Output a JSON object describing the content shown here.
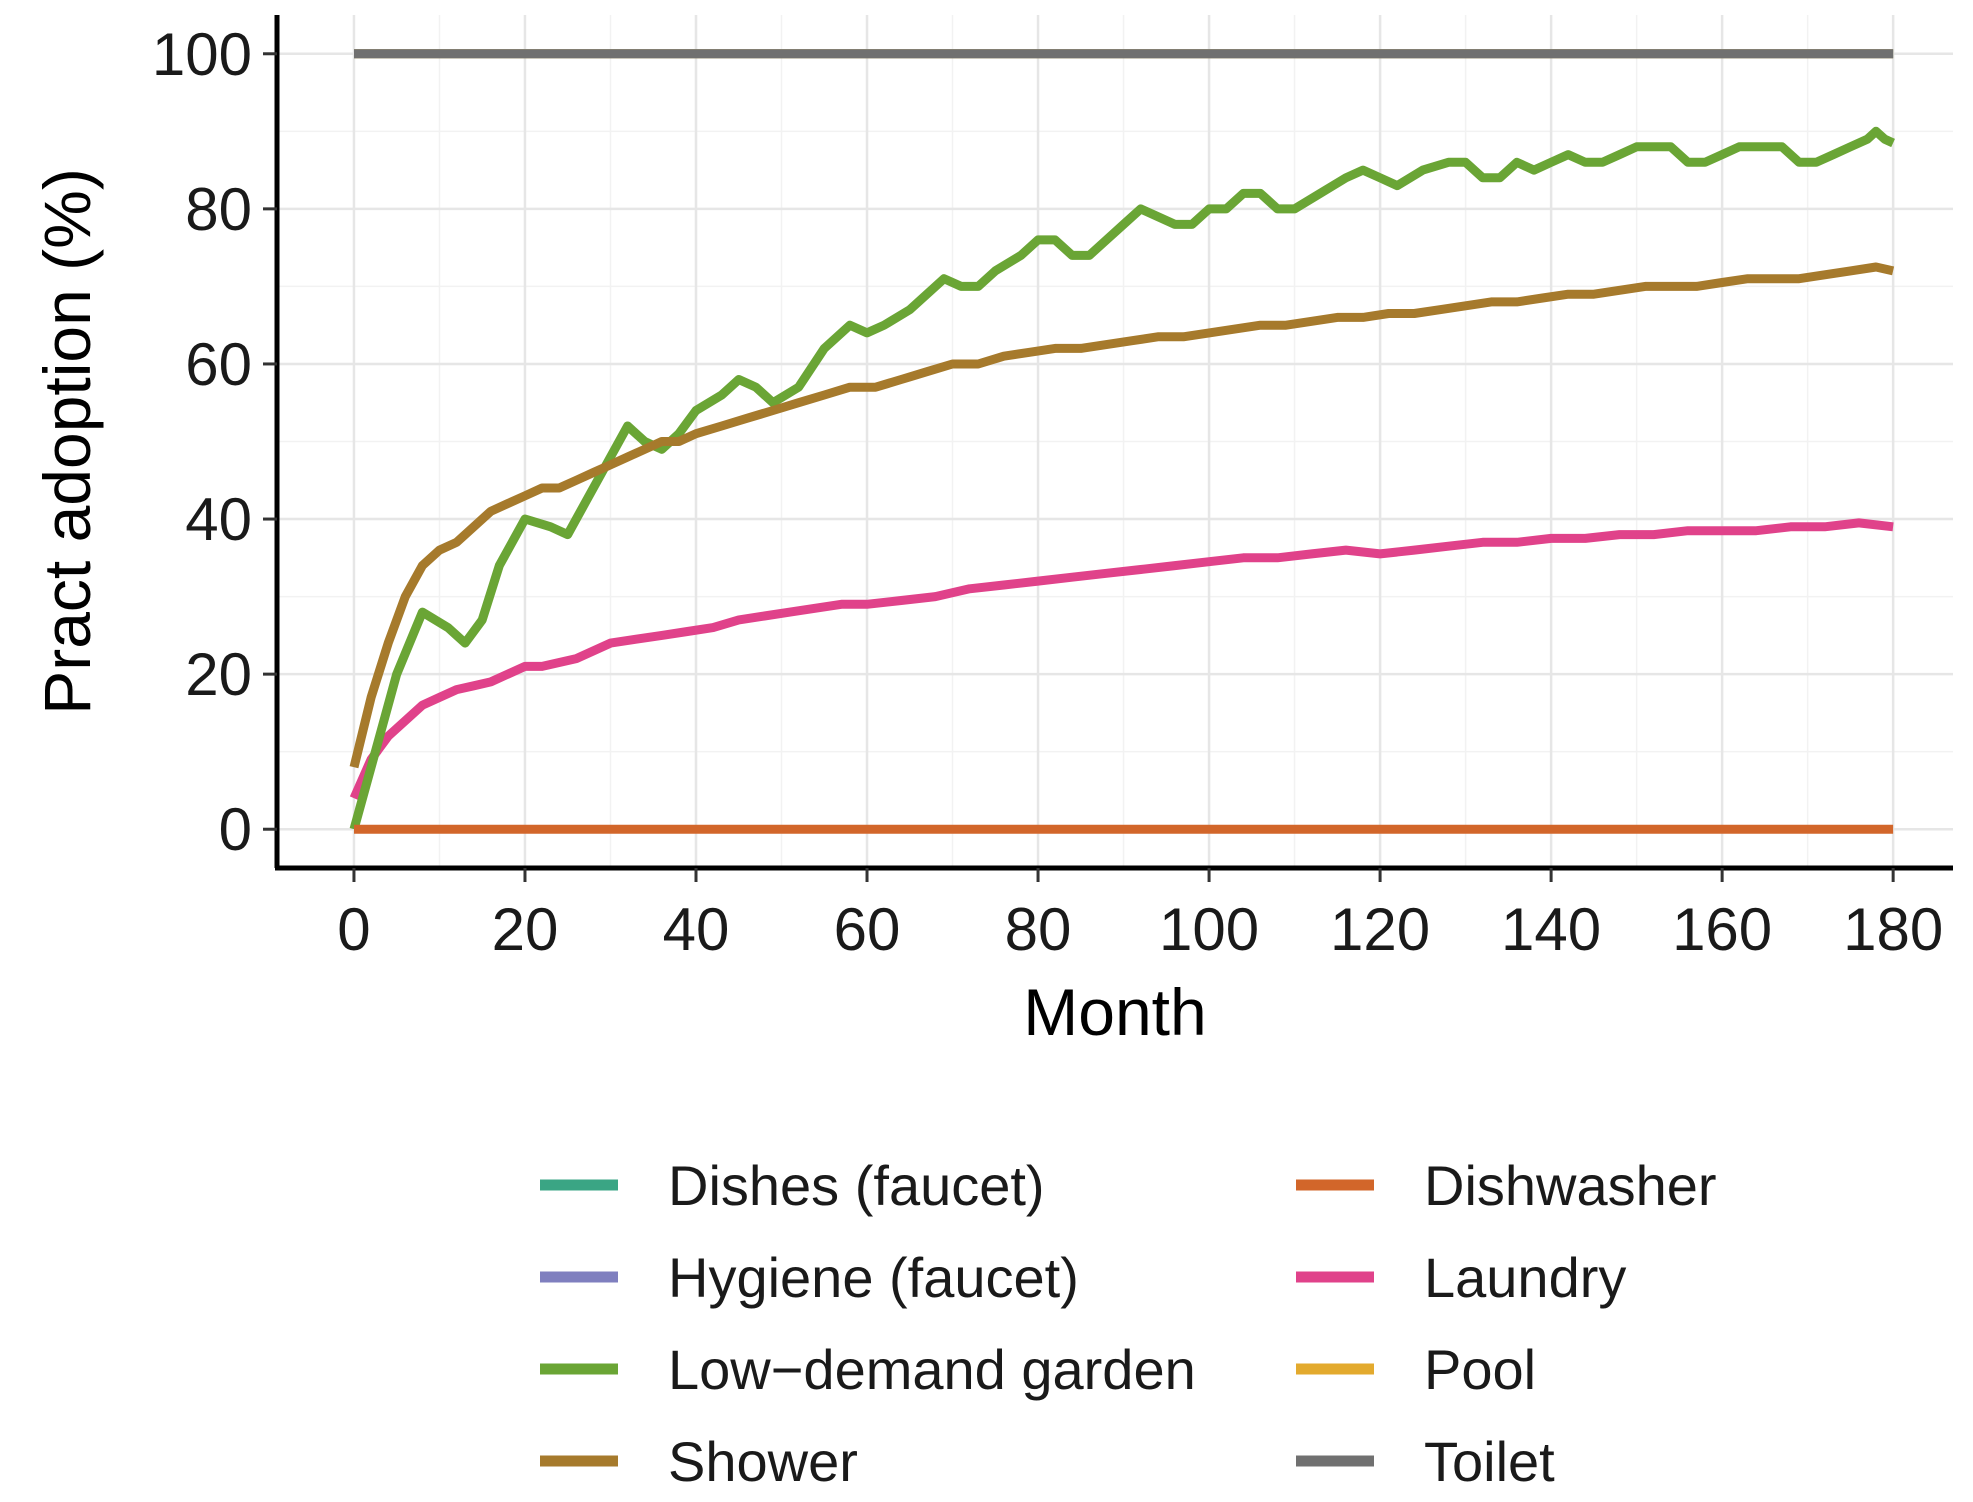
{
  "chart_data": {
    "type": "line",
    "title": "",
    "xlabel": "Month",
    "ylabel": "Pract adoption (%)",
    "xlim": [
      -9,
      187
    ],
    "ylim": [
      -5,
      105
    ],
    "x_ticks": [
      0,
      20,
      40,
      60,
      80,
      100,
      120,
      140,
      160,
      180
    ],
    "y_ticks": [
      0,
      20,
      40,
      60,
      80,
      100
    ],
    "x_tick_labels": [
      "0",
      "20",
      "40",
      "60",
      "80",
      "100",
      "120",
      "140",
      "160",
      "180"
    ],
    "y_tick_labels": [
      "0",
      "20",
      "40",
      "60",
      "80",
      "100"
    ],
    "grid": true,
    "legend_position": "bottom",
    "series": [
      {
        "name": "Dishes (faucet)",
        "color": "#3aa584",
        "x": [
          0,
          180
        ],
        "y": [
          100,
          100
        ]
      },
      {
        "name": "Hygiene (faucet)",
        "color": "#7f7fbf",
        "x": [
          0,
          180
        ],
        "y": [
          100,
          100
        ]
      },
      {
        "name": "Low−demand garden",
        "color": "#6aa535",
        "x": [
          0,
          2,
          5,
          8,
          11,
          13,
          15,
          17,
          20,
          23,
          25,
          27,
          30,
          32,
          34,
          36,
          38,
          40,
          43,
          45,
          47,
          49,
          52,
          55,
          58,
          60,
          62,
          65,
          67,
          69,
          71,
          73,
          75,
          78,
          80,
          82,
          84,
          86,
          88,
          90,
          92,
          94,
          96,
          98,
          100,
          102,
          104,
          106,
          108,
          110,
          113,
          116,
          118,
          120,
          122,
          125,
          128,
          130,
          132,
          134,
          136,
          138,
          140,
          142,
          144,
          146,
          148,
          150,
          152,
          154,
          156,
          158,
          160,
          162,
          165,
          167,
          169,
          171,
          173,
          175,
          177,
          178,
          179,
          180
        ],
        "y": [
          0,
          8,
          20,
          28,
          26,
          24,
          27,
          34,
          40,
          39,
          38,
          42,
          48,
          52,
          50,
          49,
          51,
          54,
          56,
          58,
          57,
          55,
          57,
          62,
          65,
          64,
          65,
          67,
          69,
          71,
          70,
          70,
          72,
          74,
          76,
          76,
          74,
          74,
          76,
          78,
          80,
          79,
          78,
          78,
          80,
          80,
          82,
          82,
          80,
          80,
          82,
          84,
          85,
          84,
          83,
          85,
          86,
          86,
          84,
          84,
          86,
          85,
          86,
          87,
          86,
          86,
          87,
          88,
          88,
          88,
          86,
          86,
          87,
          88,
          88,
          88,
          86,
          86,
          87,
          88,
          89,
          90,
          89,
          88.5
        ]
      },
      {
        "name": "Shower",
        "color": "#a67a2c",
        "x": [
          0,
          2,
          4,
          6,
          8,
          10,
          12,
          14,
          16,
          18,
          20,
          22,
          24,
          26,
          28,
          30,
          32,
          34,
          36,
          38,
          40,
          43,
          46,
          49,
          52,
          55,
          58,
          61,
          64,
          67,
          70,
          73,
          76,
          79,
          82,
          85,
          88,
          91,
          94,
          97,
          100,
          103,
          106,
          109,
          112,
          115,
          118,
          121,
          124,
          127,
          130,
          133,
          136,
          139,
          142,
          145,
          148,
          151,
          154,
          157,
          160,
          163,
          166,
          169,
          172,
          175,
          178,
          180
        ],
        "y": [
          8,
          17,
          24,
          30,
          34,
          36,
          37,
          39,
          41,
          42,
          43,
          44,
          44,
          45,
          46,
          47,
          48,
          49,
          50,
          50,
          51,
          52,
          53,
          54,
          55,
          56,
          57,
          57,
          58,
          59,
          60,
          60,
          61,
          61.5,
          62,
          62,
          62.5,
          63,
          63.5,
          63.5,
          64,
          64.5,
          65,
          65,
          65.5,
          66,
          66,
          66.5,
          66.5,
          67,
          67.5,
          68,
          68,
          68.5,
          69,
          69,
          69.5,
          70,
          70,
          70,
          70.5,
          71,
          71,
          71,
          71.5,
          72,
          72.5,
          72
        ]
      },
      {
        "name": "Dishwasher",
        "color": "#d2662a",
        "x": [
          0,
          180
        ],
        "y": [
          0,
          0
        ]
      },
      {
        "name": "Laundry",
        "color": "#e0428a",
        "x": [
          0,
          2,
          4,
          6,
          8,
          10,
          12,
          14,
          16,
          18,
          20,
          22,
          24,
          26,
          28,
          30,
          33,
          36,
          39,
          42,
          45,
          48,
          51,
          54,
          57,
          60,
          64,
          68,
          72,
          76,
          80,
          84,
          88,
          92,
          96,
          100,
          104,
          108,
          112,
          116,
          120,
          124,
          128,
          132,
          136,
          140,
          144,
          148,
          152,
          156,
          160,
          164,
          168,
          172,
          176,
          180
        ],
        "y": [
          4,
          9,
          12,
          14,
          16,
          17,
          18,
          18.5,
          19,
          20,
          21,
          21,
          21.5,
          22,
          23,
          24,
          24.5,
          25,
          25.5,
          26,
          27,
          27.5,
          28,
          28.5,
          29,
          29,
          29.5,
          30,
          31,
          31.5,
          32,
          32.5,
          33,
          33.5,
          34,
          34.5,
          35,
          35,
          35.5,
          36,
          35.5,
          36,
          36.5,
          37,
          37,
          37.5,
          37.5,
          38,
          38,
          38.5,
          38.5,
          38.5,
          39,
          39,
          39.5,
          39
        ]
      },
      {
        "name": "Pool",
        "color": "#e3aa2e",
        "x": [
          0,
          180
        ],
        "y": [
          100,
          100
        ]
      },
      {
        "name": "Toilet",
        "color": "#707070",
        "x": [
          0,
          180
        ],
        "y": [
          100,
          100
        ]
      }
    ]
  }
}
